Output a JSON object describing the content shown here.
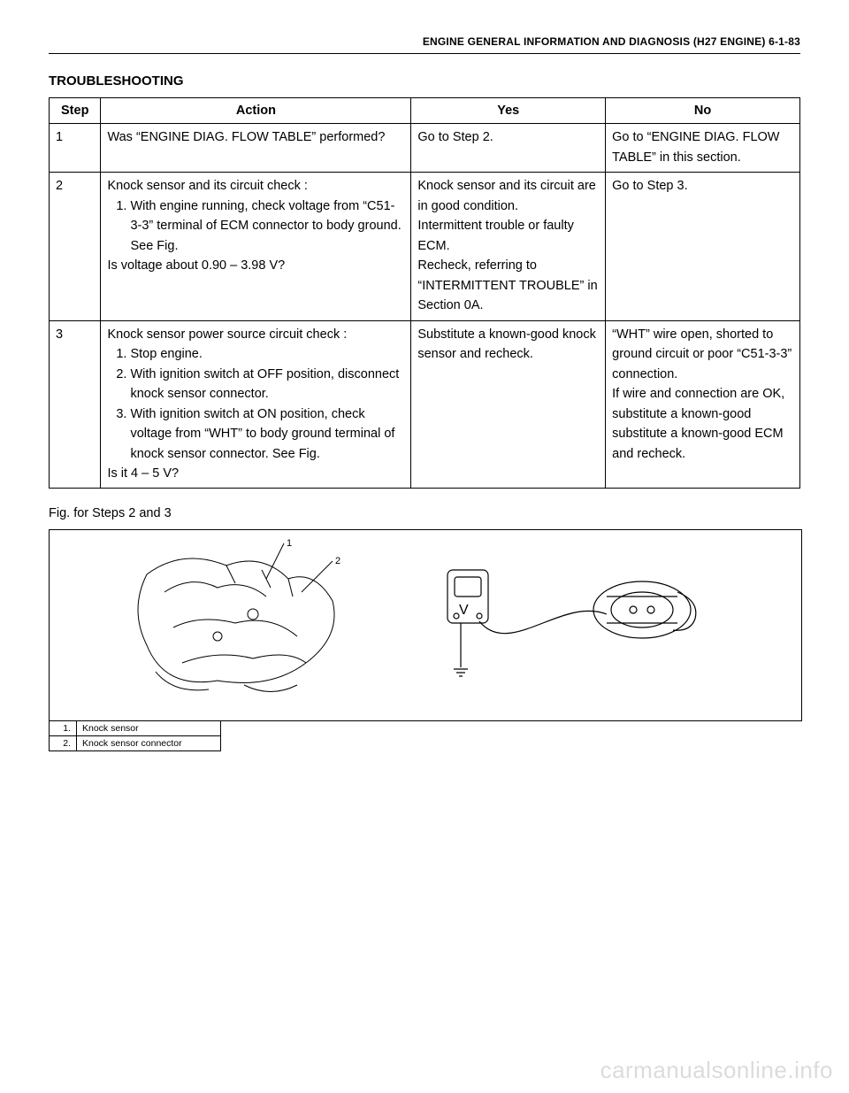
{
  "header": "ENGINE GENERAL INFORMATION AND DIAGNOSIS (H27 ENGINE) 6-1-83",
  "section_title": "TROUBLESHOOTING",
  "columns": {
    "step": "Step",
    "action": "Action",
    "yes": "Yes",
    "no": "No"
  },
  "rows": [
    {
      "step": "1",
      "action_intro": "Was “ENGINE DIAG. FLOW TABLE” performed?",
      "action_steps": [],
      "action_outro": "",
      "yes": "Go to Step 2.",
      "no": "Go to “ENGINE DIAG. FLOW TABLE” in this section."
    },
    {
      "step": "2",
      "action_intro": "Knock sensor and its circuit check :",
      "action_steps": [
        "With engine running, check voltage from “C51-3-3” terminal of ECM connector to body ground. See Fig."
      ],
      "action_outro": "Is voltage about 0.90 – 3.98 V?",
      "yes": "Knock sensor and its circuit are in good condition.\nIntermittent trouble or faulty ECM.\nRecheck, referring to “INTERMITTENT TROUBLE” in Section 0A.",
      "no": "Go to Step 3."
    },
    {
      "step": "3",
      "action_intro": "Knock sensor power source circuit check :",
      "action_steps": [
        "Stop engine.",
        "With ignition switch at OFF position, disconnect knock sensor connector.",
        "With ignition switch at ON position, check voltage from “WHT” to body ground terminal of knock sensor connector. See Fig."
      ],
      "action_outro": "Is it 4 – 5 V?",
      "yes": "Substitute a known-good knock sensor and recheck.",
      "no": "“WHT” wire open, shorted to ground circuit or poor “C51-3-3” connection.\nIf wire and connection are OK, substitute a known-good substitute a known-good ECM and recheck."
    }
  ],
  "fig_caption": "Fig. for Steps 2 and 3",
  "legend": [
    {
      "num": "1.",
      "text": "Knock sensor"
    },
    {
      "num": "2.",
      "text": "Knock sensor connector"
    }
  ],
  "callouts": {
    "a": "1",
    "b": "2"
  },
  "watermark": "carmanualsonline.info"
}
